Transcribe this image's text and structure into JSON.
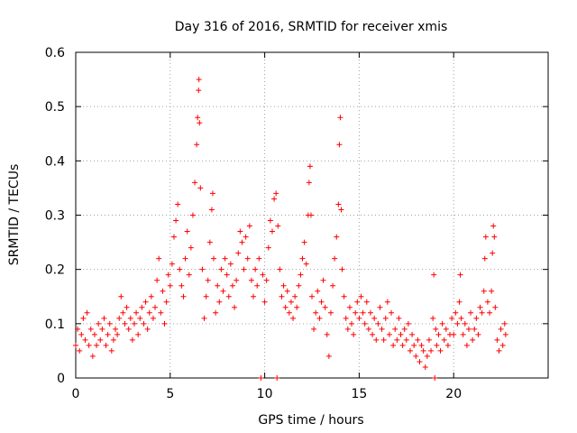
{
  "chart_data": {
    "type": "scatter",
    "title": "Day 316 of 2016, SRMTID for receiver xmis",
    "xlabel": "GPS time / hours",
    "ylabel": "SRMTID / TECUs",
    "xlim": [
      0,
      25
    ],
    "ylim": [
      0,
      0.6
    ],
    "xticks": [
      0,
      5,
      10,
      15,
      20
    ],
    "xtick_labels": [
      "0",
      "5",
      "10",
      "15",
      "20"
    ],
    "yticks": [
      0,
      0.1,
      0.2,
      0.3,
      0.4,
      0.5,
      0.6
    ],
    "ytick_labels": [
      "0",
      "0.1",
      "0.2",
      "0.3",
      "0.4",
      "0.5",
      "0.6"
    ],
    "grid": true,
    "marker": "+",
    "color": "#ff0000",
    "series": [
      {
        "name": "SRMTID",
        "points": [
          [
            0.0,
            0.06
          ],
          [
            0.1,
            0.09
          ],
          [
            0.2,
            0.05
          ],
          [
            0.3,
            0.08
          ],
          [
            0.4,
            0.11
          ],
          [
            0.5,
            0.07
          ],
          [
            0.6,
            0.12
          ],
          [
            0.7,
            0.06
          ],
          [
            0.8,
            0.09
          ],
          [
            0.9,
            0.04
          ],
          [
            1.0,
            0.08
          ],
          [
            1.1,
            0.06
          ],
          [
            1.2,
            0.1
          ],
          [
            1.3,
            0.07
          ],
          [
            1.4,
            0.09
          ],
          [
            1.5,
            0.11
          ],
          [
            1.6,
            0.06
          ],
          [
            1.7,
            0.08
          ],
          [
            1.8,
            0.1
          ],
          [
            1.9,
            0.05
          ],
          [
            2.0,
            0.07
          ],
          [
            2.1,
            0.09
          ],
          [
            2.2,
            0.08
          ],
          [
            2.3,
            0.11
          ],
          [
            2.4,
            0.15
          ],
          [
            2.5,
            0.12
          ],
          [
            2.6,
            0.1
          ],
          [
            2.7,
            0.13
          ],
          [
            2.8,
            0.09
          ],
          [
            2.9,
            0.11
          ],
          [
            3.0,
            0.07
          ],
          [
            3.1,
            0.1
          ],
          [
            3.2,
            0.12
          ],
          [
            3.3,
            0.08
          ],
          [
            3.4,
            0.11
          ],
          [
            3.5,
            0.13
          ],
          [
            3.6,
            0.1
          ],
          [
            3.7,
            0.14
          ],
          [
            3.8,
            0.09
          ],
          [
            3.9,
            0.12
          ],
          [
            4.0,
            0.15
          ],
          [
            4.1,
            0.11
          ],
          [
            4.2,
            0.13
          ],
          [
            4.3,
            0.18
          ],
          [
            4.4,
            0.22
          ],
          [
            4.5,
            0.12
          ],
          [
            4.6,
            0.16
          ],
          [
            4.7,
            0.1
          ],
          [
            4.8,
            0.14
          ],
          [
            4.9,
            0.19
          ],
          [
            5.0,
            0.17
          ],
          [
            5.1,
            0.21
          ],
          [
            5.2,
            0.26
          ],
          [
            5.3,
            0.29
          ],
          [
            5.4,
            0.32
          ],
          [
            5.5,
            0.2
          ],
          [
            5.6,
            0.17
          ],
          [
            5.7,
            0.15
          ],
          [
            5.8,
            0.22
          ],
          [
            5.9,
            0.27
          ],
          [
            6.0,
            0.19
          ],
          [
            6.1,
            0.24
          ],
          [
            6.2,
            0.3
          ],
          [
            6.3,
            0.36
          ],
          [
            6.4,
            0.43
          ],
          [
            6.45,
            0.48
          ],
          [
            6.5,
            0.53
          ],
          [
            6.52,
            0.55
          ],
          [
            6.55,
            0.47
          ],
          [
            6.6,
            0.35
          ],
          [
            6.7,
            0.2
          ],
          [
            6.8,
            0.11
          ],
          [
            6.9,
            0.15
          ],
          [
            7.0,
            0.18
          ],
          [
            7.1,
            0.25
          ],
          [
            7.2,
            0.31
          ],
          [
            7.25,
            0.34
          ],
          [
            7.3,
            0.22
          ],
          [
            7.4,
            0.12
          ],
          [
            7.5,
            0.17
          ],
          [
            7.6,
            0.14
          ],
          [
            7.7,
            0.2
          ],
          [
            7.8,
            0.16
          ],
          [
            7.9,
            0.22
          ],
          [
            8.0,
            0.19
          ],
          [
            8.1,
            0.15
          ],
          [
            8.2,
            0.21
          ],
          [
            8.3,
            0.17
          ],
          [
            8.4,
            0.13
          ],
          [
            8.5,
            0.18
          ],
          [
            8.6,
            0.23
          ],
          [
            8.7,
            0.27
          ],
          [
            8.8,
            0.25
          ],
          [
            8.9,
            0.2
          ],
          [
            9.0,
            0.26
          ],
          [
            9.1,
            0.22
          ],
          [
            9.2,
            0.28
          ],
          [
            9.3,
            0.18
          ],
          [
            9.4,
            0.15
          ],
          [
            9.5,
            0.2
          ],
          [
            9.6,
            0.17
          ],
          [
            9.7,
            0.22
          ],
          [
            9.8,
            0.0
          ],
          [
            9.9,
            0.19
          ],
          [
            10.0,
            0.14
          ],
          [
            10.1,
            0.18
          ],
          [
            10.2,
            0.24
          ],
          [
            10.3,
            0.29
          ],
          [
            10.4,
            0.27
          ],
          [
            10.5,
            0.33
          ],
          [
            10.6,
            0.34
          ],
          [
            10.65,
            0.0
          ],
          [
            10.7,
            0.28
          ],
          [
            10.8,
            0.2
          ],
          [
            10.9,
            0.15
          ],
          [
            11.0,
            0.17
          ],
          [
            11.1,
            0.13
          ],
          [
            11.2,
            0.16
          ],
          [
            11.3,
            0.12
          ],
          [
            11.4,
            0.14
          ],
          [
            11.5,
            0.11
          ],
          [
            11.6,
            0.15
          ],
          [
            11.7,
            0.13
          ],
          [
            11.8,
            0.17
          ],
          [
            11.9,
            0.19
          ],
          [
            12.0,
            0.22
          ],
          [
            12.1,
            0.25
          ],
          [
            12.2,
            0.21
          ],
          [
            12.3,
            0.3
          ],
          [
            12.35,
            0.36
          ],
          [
            12.4,
            0.39
          ],
          [
            12.45,
            0.3
          ],
          [
            12.5,
            0.15
          ],
          [
            12.6,
            0.09
          ],
          [
            12.7,
            0.12
          ],
          [
            12.8,
            0.16
          ],
          [
            12.9,
            0.11
          ],
          [
            13.0,
            0.14
          ],
          [
            13.1,
            0.18
          ],
          [
            13.2,
            0.13
          ],
          [
            13.3,
            0.08
          ],
          [
            13.4,
            0.04
          ],
          [
            13.5,
            0.12
          ],
          [
            13.6,
            0.17
          ],
          [
            13.7,
            0.22
          ],
          [
            13.8,
            0.26
          ],
          [
            13.9,
            0.32
          ],
          [
            13.95,
            0.43
          ],
          [
            14.0,
            0.48
          ],
          [
            14.05,
            0.31
          ],
          [
            14.1,
            0.2
          ],
          [
            14.2,
            0.15
          ],
          [
            14.3,
            0.11
          ],
          [
            14.4,
            0.09
          ],
          [
            14.5,
            0.13
          ],
          [
            14.6,
            0.1
          ],
          [
            14.7,
            0.08
          ],
          [
            14.8,
            0.12
          ],
          [
            14.9,
            0.14
          ],
          [
            15.0,
            0.11
          ],
          [
            15.1,
            0.15
          ],
          [
            15.2,
            0.12
          ],
          [
            15.3,
            0.1
          ],
          [
            15.4,
            0.14
          ],
          [
            15.5,
            0.09
          ],
          [
            15.6,
            0.12
          ],
          [
            15.7,
            0.08
          ],
          [
            15.8,
            0.11
          ],
          [
            15.9,
            0.07
          ],
          [
            16.0,
            0.1
          ],
          [
            16.1,
            0.13
          ],
          [
            16.2,
            0.09
          ],
          [
            16.3,
            0.07
          ],
          [
            16.4,
            0.11
          ],
          [
            16.5,
            0.14
          ],
          [
            16.6,
            0.08
          ],
          [
            16.7,
            0.12
          ],
          [
            16.8,
            0.06
          ],
          [
            16.9,
            0.09
          ],
          [
            17.0,
            0.07
          ],
          [
            17.1,
            0.11
          ],
          [
            17.2,
            0.08
          ],
          [
            17.3,
            0.06
          ],
          [
            17.4,
            0.09
          ],
          [
            17.5,
            0.07
          ],
          [
            17.6,
            0.1
          ],
          [
            17.7,
            0.05
          ],
          [
            17.8,
            0.08
          ],
          [
            17.9,
            0.06
          ],
          [
            18.0,
            0.04
          ],
          [
            18.1,
            0.07
          ],
          [
            18.2,
            0.03
          ],
          [
            18.3,
            0.06
          ],
          [
            18.4,
            0.05
          ],
          [
            18.5,
            0.02
          ],
          [
            18.6,
            0.04
          ],
          [
            18.7,
            0.07
          ],
          [
            18.8,
            0.05
          ],
          [
            18.9,
            0.11
          ],
          [
            18.95,
            0.19
          ],
          [
            19.0,
            0.0
          ],
          [
            19.05,
            0.09
          ],
          [
            19.1,
            0.06
          ],
          [
            19.2,
            0.08
          ],
          [
            19.3,
            0.05
          ],
          [
            19.4,
            0.1
          ],
          [
            19.5,
            0.07
          ],
          [
            19.6,
            0.09
          ],
          [
            19.7,
            0.06
          ],
          [
            19.8,
            0.08
          ],
          [
            19.9,
            0.11
          ],
          [
            20.0,
            0.08
          ],
          [
            20.1,
            0.12
          ],
          [
            20.2,
            0.1
          ],
          [
            20.3,
            0.14
          ],
          [
            20.35,
            0.19
          ],
          [
            20.4,
            0.11
          ],
          [
            20.5,
            0.08
          ],
          [
            20.6,
            0.1
          ],
          [
            20.7,
            0.06
          ],
          [
            20.8,
            0.09
          ],
          [
            20.9,
            0.12
          ],
          [
            21.0,
            0.07
          ],
          [
            21.1,
            0.09
          ],
          [
            21.2,
            0.11
          ],
          [
            21.3,
            0.08
          ],
          [
            21.4,
            0.13
          ],
          [
            21.5,
            0.12
          ],
          [
            21.6,
            0.16
          ],
          [
            21.65,
            0.22
          ],
          [
            21.7,
            0.26
          ],
          [
            21.8,
            0.14
          ],
          [
            21.9,
            0.12
          ],
          [
            22.0,
            0.16
          ],
          [
            22.05,
            0.23
          ],
          [
            22.1,
            0.28
          ],
          [
            22.15,
            0.26
          ],
          [
            22.2,
            0.13
          ],
          [
            22.3,
            0.07
          ],
          [
            22.4,
            0.05
          ],
          [
            22.5,
            0.09
          ],
          [
            22.6,
            0.06
          ],
          [
            22.7,
            0.1
          ],
          [
            22.75,
            0.08
          ]
        ]
      }
    ]
  }
}
